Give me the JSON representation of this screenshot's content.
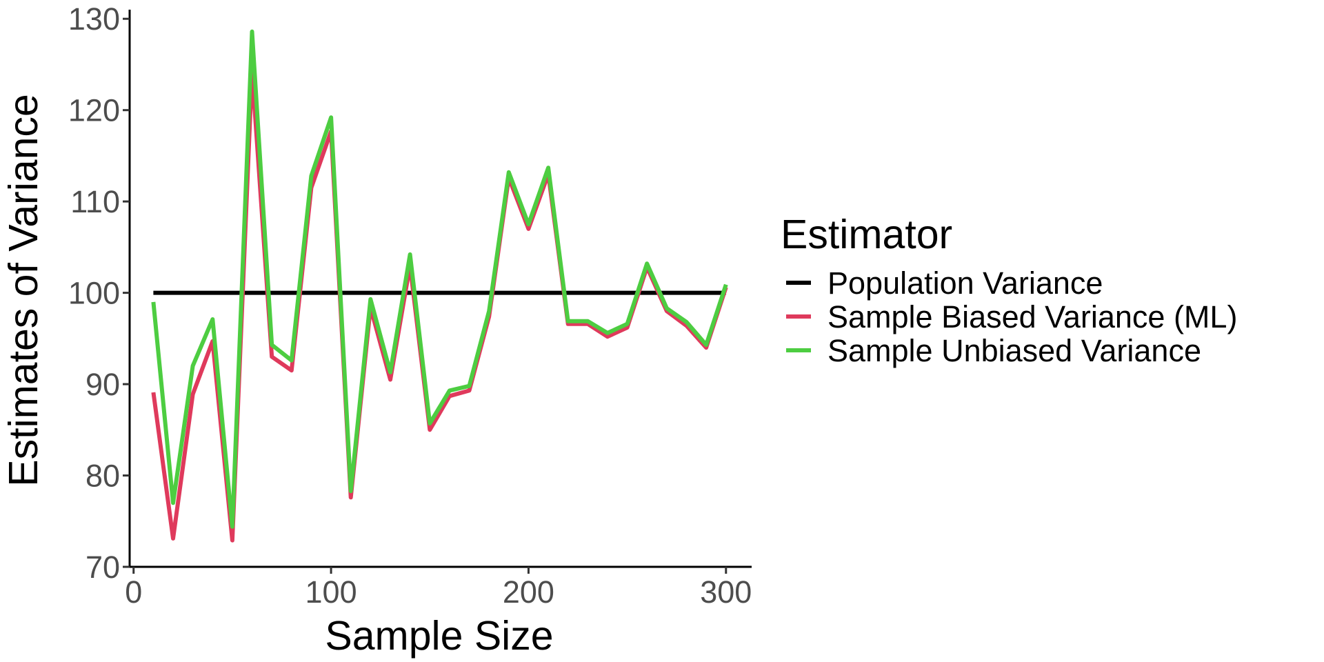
{
  "chart_data": {
    "type": "line",
    "xlabel": "Sample Size",
    "ylabel": "Estimates of Variance",
    "xlim": [
      -2,
      313
    ],
    "ylim": [
      70,
      131
    ],
    "x_ticks": [
      0,
      100,
      200,
      300
    ],
    "y_ticks": [
      70,
      80,
      90,
      100,
      110,
      120,
      130
    ],
    "grid": false,
    "legend": {
      "title": "Estimator",
      "placement": "right"
    },
    "x": [
      10,
      20,
      30,
      40,
      50,
      60,
      70,
      80,
      90,
      100,
      110,
      120,
      130,
      140,
      150,
      160,
      170,
      180,
      190,
      200,
      210,
      220,
      230,
      240,
      250,
      260,
      270,
      280,
      290,
      300
    ],
    "series": [
      {
        "name": "Population Variance",
        "color": "#000000",
        "values": [
          100,
          100,
          100,
          100,
          100,
          100,
          100,
          100,
          100,
          100,
          100,
          100,
          100,
          100,
          100,
          100,
          100,
          100,
          100,
          100,
          100,
          100,
          100,
          100,
          100,
          100,
          100,
          100,
          100,
          100
        ]
      },
      {
        "name": "Sample Biased Variance (ML)",
        "color": "#DF3A5C",
        "values": [
          89.1,
          73.1,
          88.9,
          94.7,
          72.9,
          124.3,
          93.0,
          91.5,
          111.5,
          117.7,
          77.6,
          98.4,
          90.5,
          103.0,
          85.0,
          88.7,
          89.3,
          97.4,
          112.6,
          107.0,
          113.0,
          96.6,
          96.6,
          95.2,
          96.2,
          102.8,
          98.0,
          96.4,
          94.0,
          100.6
        ]
      },
      {
        "name": "Sample Unbiased Variance",
        "color": "#4DCD41",
        "values": [
          99.0,
          77.0,
          92.0,
          97.1,
          74.4,
          128.6,
          94.3,
          92.6,
          112.8,
          119.2,
          78.3,
          99.3,
          91.3,
          104.2,
          85.7,
          89.3,
          89.8,
          98.0,
          113.2,
          107.5,
          113.7,
          96.9,
          96.9,
          95.6,
          96.6,
          103.2,
          98.3,
          96.8,
          94.3,
          100.9
        ]
      }
    ]
  }
}
